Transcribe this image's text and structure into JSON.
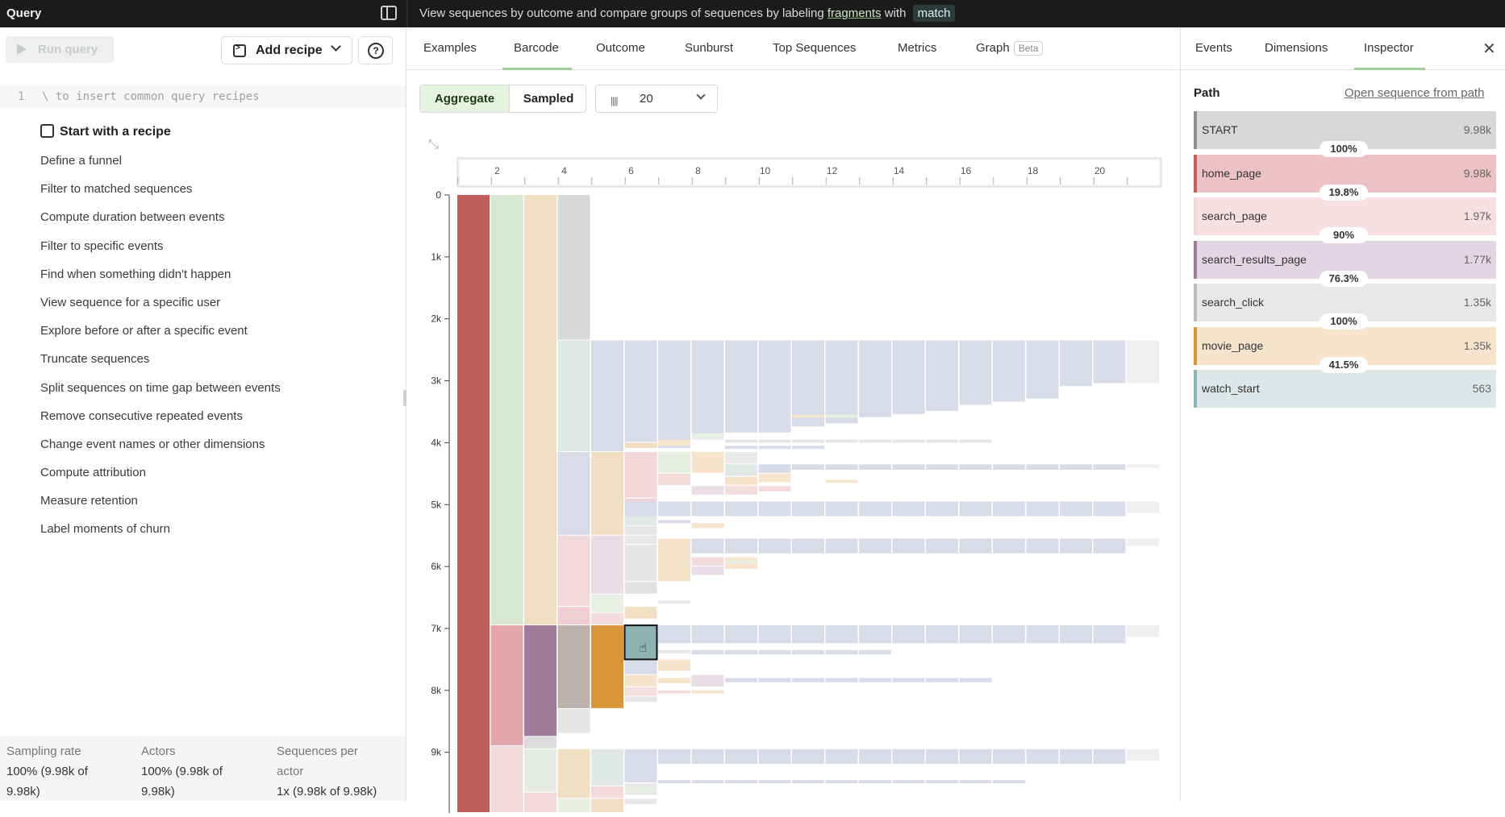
{
  "topbar": {
    "title": "Query",
    "hint_prefix": "View sequences by outcome and compare groups of sequences by labeling ",
    "hint_link": "fragments",
    "hint_middle": " with ",
    "hint_pill": "match"
  },
  "left": {
    "run_label": "Run query",
    "add_recipe_label": "Add recipe",
    "editor": {
      "line_number": "1",
      "placeholder": "\\ to insert common query recipes"
    },
    "recipe_heading": "Start with a recipe",
    "recipes": [
      "Define a funnel",
      "Filter to matched sequences",
      "Compute duration between events",
      "Filter to specific events",
      "Find when something didn't happen",
      "View sequence for a specific user",
      "Explore before or after a specific event",
      "Truncate sequences",
      "Split sequences on time gap between events",
      "Remove consecutive repeated events",
      "Change event names or other dimensions",
      "Compute attribution",
      "Measure retention",
      "Label moments of churn"
    ],
    "stats": {
      "sampling_label": "Sampling rate",
      "sampling_value_1": "100% (9.98k of",
      "sampling_value_2": "9.98k)",
      "actors_label": "Actors",
      "actors_value_1": "100% (9.98k of",
      "actors_value_2": "9.98k)",
      "seq_label_1": "Sequences per",
      "seq_label_2": "actor",
      "seq_value": "1x (9.98k of 9.98k)"
    }
  },
  "center": {
    "tabs": [
      "Examples",
      "Barcode",
      "Outcome",
      "Sunburst",
      "Top Sequences",
      "Metrics",
      "Graph"
    ],
    "active_tab": "Barcode",
    "beta_label": "Beta",
    "aggregate_label": "Aggregate",
    "sampled_label": "Sampled",
    "count_value": "20"
  },
  "chart_data": {
    "type": "barcode",
    "x_ticks": [
      "2",
      "4",
      "6",
      "8",
      "10",
      "12",
      "14",
      "16",
      "18",
      "20"
    ],
    "y_ticks": [
      "0",
      "1k",
      "2k",
      "3k",
      "4k",
      "5k",
      "6k",
      "7k",
      "8k",
      "9k"
    ],
    "xlim": [
      0,
      21
    ],
    "ylim": [
      0,
      9980
    ],
    "grid": false,
    "colors": {
      "start": "#c0605a",
      "home": "#d7e8d2",
      "search": "#f1dfc4",
      "neutral": "#d7d8d8",
      "blue": "#d8dbe8",
      "pink": "#f1d9dc",
      "highlight_pink": "#e3a6aa",
      "purple": "#a07c9b",
      "taupe": "#bcb1ad",
      "orange": "#d9953a",
      "teal": "#8fb3b2"
    }
  },
  "right": {
    "tabs": [
      "Events",
      "Dimensions",
      "Inspector"
    ],
    "active_tab": "Inspector",
    "path_title": "Path",
    "open_link": "Open sequence from path",
    "path": [
      {
        "name": "START",
        "count": "9.98k",
        "color": "#d7d8d8",
        "edge": "#8e8e8e",
        "share": 1.0
      },
      {
        "name": "home_page",
        "count": "9.98k",
        "color": "#ecc2c4",
        "edge": "#c0605a",
        "share": 1.0
      },
      {
        "name": "search_page",
        "count": "1.97k",
        "color": "#f6e0e2",
        "edge": "#f1d9dc",
        "share": 0.2
      },
      {
        "name": "search_results_page",
        "count": "1.77k",
        "color": "#e3d6e2",
        "edge": "#a07c9b",
        "share": 0.18
      },
      {
        "name": "search_click",
        "count": "1.35k",
        "color": "#e8e8e8",
        "edge": "#bcbcbc",
        "share": 0.14
      },
      {
        "name": "movie_page",
        "count": "1.35k",
        "color": "#f6e4cc",
        "edge": "#d9953a",
        "share": 0.14
      },
      {
        "name": "watch_start",
        "count": "563",
        "color": "#dbe8e7",
        "edge": "#8fb3b2",
        "share": 0.06
      }
    ],
    "percents": [
      "100%",
      "19.8%",
      "90%",
      "76.3%",
      "100%",
      "41.5%"
    ]
  }
}
